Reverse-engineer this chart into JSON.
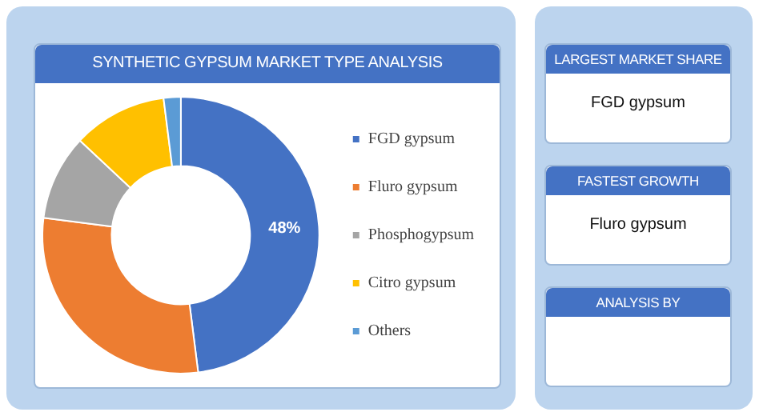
{
  "chart_data": [
    {
      "type": "donut",
      "title": "SYNTHETIC GYPSUM MARKET TYPE ANALYSIS",
      "categories": [
        "FGD gypsum",
        "Fluro gypsum",
        "Phosphogypsum",
        "Citro gypsum",
        "Others"
      ],
      "values": [
        48,
        29,
        10,
        11,
        2
      ],
      "colors": [
        "#4472c4",
        "#ed7d31",
        "#a5a5a5",
        "#ffc000",
        "#5b9bd5"
      ],
      "value_labels": [
        "48%",
        null,
        null,
        null,
        null
      ],
      "legend": "right"
    },
    {
      "type": "other",
      "title": "LARGEST MARKET SHARE",
      "annotations": [
        "FGD gypsum"
      ]
    },
    {
      "type": "other",
      "title": "FASTEST GROWTH",
      "annotations": [
        "Fluro gypsum"
      ]
    },
    {
      "type": "other",
      "title": "ANALYSIS BY"
    }
  ]
}
